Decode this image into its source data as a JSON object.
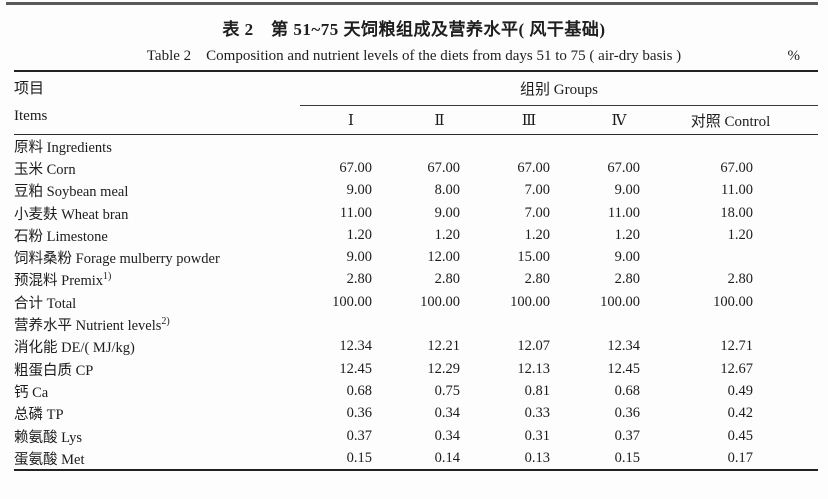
{
  "table": {
    "title_zh": "表 2　第 51~75 天饲粮组成及营养水平( 风干基础)",
    "title_en": "Table 2　Composition and nutrient levels of the diets from days 51 to 75 ( air-dry basis )",
    "unit": "%",
    "header": {
      "items_zh": "项目",
      "items_en": "Items",
      "groups_label": "组别 Groups",
      "columns": [
        "Ⅰ",
        "Ⅱ",
        "Ⅲ",
        "Ⅳ",
        "对照 Control"
      ]
    },
    "rows": [
      {
        "label": "原料 Ingredients",
        "sup": "",
        "values": [
          "",
          "",
          "",
          "",
          ""
        ]
      },
      {
        "label": "玉米 Corn",
        "sup": "",
        "values": [
          "67.00",
          "67.00",
          "67.00",
          "67.00",
          "67.00"
        ]
      },
      {
        "label": "豆粕 Soybean meal",
        "sup": "",
        "values": [
          "9.00",
          "8.00",
          "7.00",
          "9.00",
          "11.00"
        ]
      },
      {
        "label": "小麦麸 Wheat bran",
        "sup": "",
        "values": [
          "11.00",
          "9.00",
          "7.00",
          "11.00",
          "18.00"
        ]
      },
      {
        "label": "石粉 Limestone",
        "sup": "",
        "values": [
          "1.20",
          "1.20",
          "1.20",
          "1.20",
          "1.20"
        ]
      },
      {
        "label": "饲料桑粉 Forage mulberry powder",
        "sup": "",
        "values": [
          "9.00",
          "12.00",
          "15.00",
          "9.00",
          ""
        ]
      },
      {
        "label": "预混料 Premix",
        "sup": "1)",
        "values": [
          "2.80",
          "2.80",
          "2.80",
          "2.80",
          "2.80"
        ]
      },
      {
        "label": "合计 Total",
        "sup": "",
        "values": [
          "100.00",
          "100.00",
          "100.00",
          "100.00",
          "100.00"
        ]
      },
      {
        "label": "营养水平 Nutrient levels",
        "sup": "2)",
        "values": [
          "",
          "",
          "",
          "",
          ""
        ]
      },
      {
        "label": "消化能 DE/( MJ/kg)",
        "sup": "",
        "values": [
          "12.34",
          "12.21",
          "12.07",
          "12.34",
          "12.71"
        ]
      },
      {
        "label": "粗蛋白质 CP",
        "sup": "",
        "values": [
          "12.45",
          "12.29",
          "12.13",
          "12.45",
          "12.67"
        ]
      },
      {
        "label": "钙 Ca",
        "sup": "",
        "values": [
          "0.68",
          "0.75",
          "0.81",
          "0.68",
          "0.49"
        ]
      },
      {
        "label": "总磷 TP",
        "sup": "",
        "values": [
          "0.36",
          "0.34",
          "0.33",
          "0.36",
          "0.42"
        ]
      },
      {
        "label": "赖氨酸 Lys",
        "sup": "",
        "values": [
          "0.37",
          "0.34",
          "0.31",
          "0.37",
          "0.45"
        ]
      },
      {
        "label": "蛋氨酸 Met",
        "sup": "",
        "values": [
          "0.15",
          "0.14",
          "0.13",
          "0.15",
          "0.17"
        ]
      }
    ]
  }
}
